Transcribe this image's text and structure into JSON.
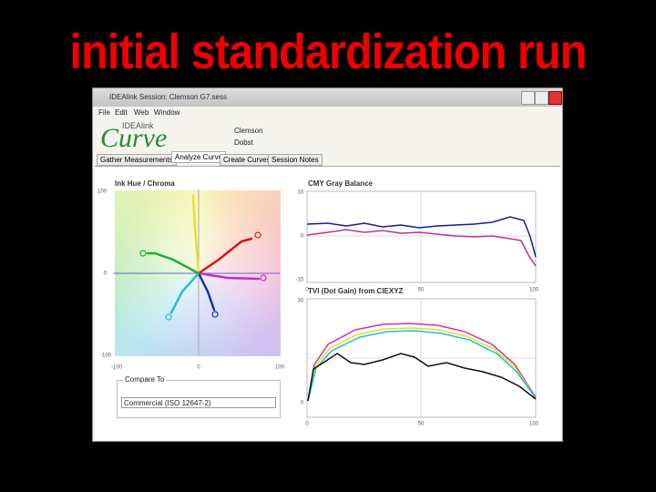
{
  "slide": {
    "title": "initial standardization run"
  },
  "window": {
    "title": "IDEAlink Session: Clemson G7.sess",
    "menu": [
      "File",
      "Edit",
      "Web",
      "Window"
    ]
  },
  "header": {
    "logo_top": "IDEAlink",
    "logo": "Curve",
    "fields": [
      "Clemson",
      "Dobst"
    ]
  },
  "tabs": [
    "Gather Measurements",
    "Analyze Curve",
    "Create Curves",
    "Session Notes"
  ],
  "panels": {
    "hue_chroma": {
      "title": "Ink Hue / Chroma",
      "yticks": [
        "100",
        "0",
        "-100"
      ],
      "xticks": [
        "-100",
        "0",
        "100"
      ]
    },
    "gray_balance": {
      "title": "CMY Gray Balance",
      "yticks": [
        "10",
        "0",
        "-10"
      ],
      "xticks": [
        "0",
        "50",
        "100"
      ]
    },
    "tvi": {
      "title": "TVI (Dot Gain) from CIEXYZ",
      "yticks": [
        "30",
        "0"
      ],
      "xticks": [
        "0",
        "50",
        "100"
      ]
    }
  },
  "compare": {
    "label": "Compare To",
    "value": "Commercial (ISO 12647-2)"
  }
}
